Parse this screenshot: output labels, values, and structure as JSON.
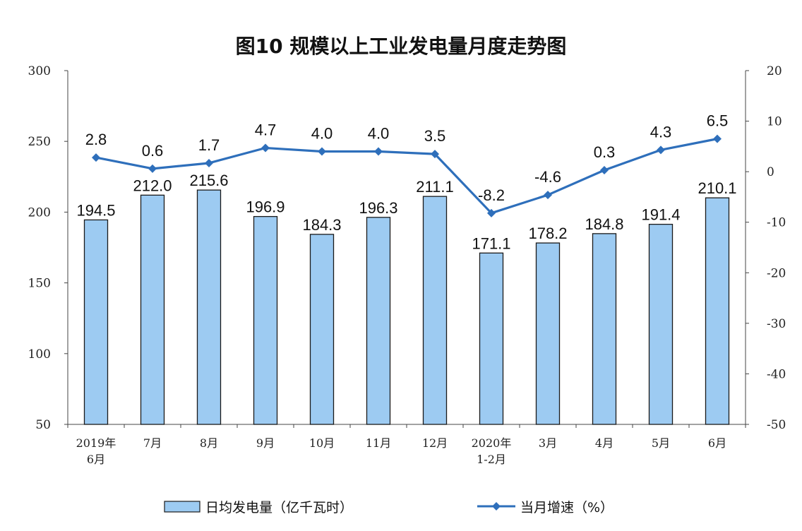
{
  "chart_data": {
    "type": "bar+line",
    "title": "图10 规模以上工业发电量月度走势图",
    "categories": [
      [
        "2019年",
        "6月"
      ],
      [
        "7月"
      ],
      [
        "8月"
      ],
      [
        "9月"
      ],
      [
        "10月"
      ],
      [
        "11月"
      ],
      [
        "12月"
      ],
      [
        "2020年",
        "1-2月"
      ],
      [
        "3月"
      ],
      [
        "4月"
      ],
      [
        "5月"
      ],
      [
        "6月"
      ]
    ],
    "series": [
      {
        "name": "日均发电量（亿千瓦时）",
        "type": "bar",
        "axis": "left",
        "color": "#9dcbf2",
        "values": [
          194.5,
          212.0,
          215.6,
          196.9,
          184.3,
          196.3,
          211.1,
          171.1,
          178.2,
          184.8,
          191.4,
          210.1
        ],
        "labels": [
          "194.5",
          "212.0",
          "215.6",
          "196.9",
          "184.3",
          "196.3",
          "211.1",
          "171.1",
          "178.2",
          "184.8",
          "191.4",
          "210.1"
        ]
      },
      {
        "name": "当月增速（%）",
        "type": "line",
        "axis": "right",
        "color": "#2e6fbb",
        "values": [
          2.8,
          0.6,
          1.7,
          4.7,
          4.0,
          4.0,
          3.5,
          -8.2,
          -4.6,
          0.3,
          4.3,
          6.5
        ],
        "labels": [
          "2.8",
          "0.6",
          "1.7",
          "4.7",
          "4.0",
          "4.0",
          "3.5",
          "-8.2",
          "-4.6",
          "0.3",
          "4.3",
          "6.5"
        ]
      }
    ],
    "y_left": {
      "range": [
        50,
        300
      ],
      "ticks": [
        "50",
        "100",
        "150",
        "200",
        "250",
        "300"
      ]
    },
    "y_right": {
      "range": [
        -50,
        20
      ],
      "ticks": [
        "-50",
        "-40",
        "-30",
        "-20",
        "-10",
        "0",
        "10",
        "20"
      ]
    },
    "grid": false,
    "legend": "bottom"
  }
}
